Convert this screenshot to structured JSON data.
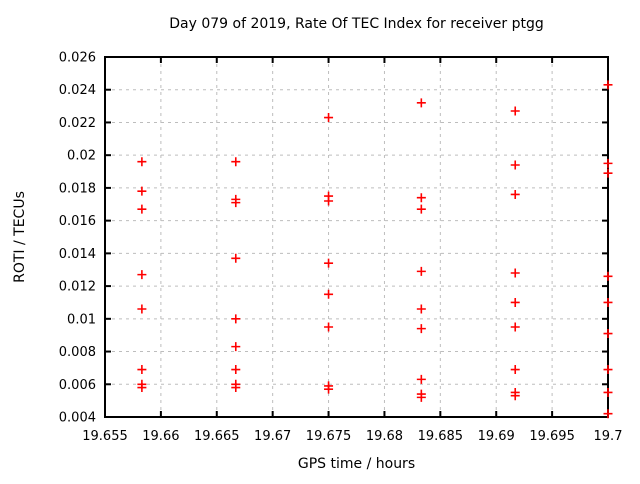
{
  "chart_data": {
    "type": "scatter",
    "title": "Day 079 of 2019, Rate Of TEC Index for receiver ptgg",
    "xlabel": "GPS time / hours",
    "ylabel": "ROTI / TECUs",
    "xlim": [
      19.655,
      19.7
    ],
    "ylim": [
      0.004,
      0.026
    ],
    "x_ticks": [
      19.655,
      19.66,
      19.665,
      19.67,
      19.675,
      19.68,
      19.685,
      19.69,
      19.695,
      19.7
    ],
    "x_tick_labels": [
      "19.655",
      "19.66",
      "19.665",
      "19.67",
      "19.675",
      "19.68",
      "19.685",
      "19.69",
      "19.695",
      "19.7"
    ],
    "y_ticks": [
      0.004,
      0.006,
      0.008,
      0.01,
      0.012,
      0.014,
      0.016,
      0.018,
      0.02,
      0.022,
      0.024,
      0.026
    ],
    "y_tick_labels": [
      "0.004",
      "0.006",
      "0.008",
      "0.01",
      "0.012",
      "0.014",
      "0.016",
      "0.018",
      "0.02",
      "0.022",
      "0.024",
      "0.026"
    ],
    "grid": true,
    "legend": false,
    "grid_color": "#bdbdbd",
    "border_color": "#000000",
    "marker": {
      "shape": "plus",
      "color": "#ff0000",
      "size": 9
    },
    "series": [
      {
        "name": "ROTI",
        "points": [
          [
            19.6583,
            0.0196
          ],
          [
            19.6583,
            0.0178
          ],
          [
            19.6583,
            0.0167
          ],
          [
            19.6583,
            0.0127
          ],
          [
            19.6583,
            0.0106
          ],
          [
            19.6583,
            0.0069
          ],
          [
            19.6583,
            0.006
          ],
          [
            19.6583,
            0.0058
          ],
          [
            19.6667,
            0.0196
          ],
          [
            19.6667,
            0.0173
          ],
          [
            19.6667,
            0.0171
          ],
          [
            19.6667,
            0.0137
          ],
          [
            19.6667,
            0.01
          ],
          [
            19.6667,
            0.0083
          ],
          [
            19.6667,
            0.0069
          ],
          [
            19.6667,
            0.006
          ],
          [
            19.6667,
            0.0058
          ],
          [
            19.675,
            0.0223
          ],
          [
            19.675,
            0.0175
          ],
          [
            19.675,
            0.0172
          ],
          [
            19.675,
            0.0134
          ],
          [
            19.675,
            0.0115
          ],
          [
            19.675,
            0.0095
          ],
          [
            19.675,
            0.0059
          ],
          [
            19.675,
            0.0057
          ],
          [
            19.6833,
            0.0232
          ],
          [
            19.6833,
            0.0174
          ],
          [
            19.6833,
            0.0167
          ],
          [
            19.6833,
            0.0129
          ],
          [
            19.6833,
            0.0106
          ],
          [
            19.6833,
            0.0094
          ],
          [
            19.6833,
            0.0063
          ],
          [
            19.6833,
            0.0054
          ],
          [
            19.6833,
            0.0052
          ],
          [
            19.6917,
            0.0227
          ],
          [
            19.6917,
            0.0194
          ],
          [
            19.6917,
            0.0176
          ],
          [
            19.6917,
            0.0128
          ],
          [
            19.6917,
            0.011
          ],
          [
            19.6917,
            0.0095
          ],
          [
            19.6917,
            0.0069
          ],
          [
            19.6917,
            0.0055
          ],
          [
            19.6917,
            0.0053
          ],
          [
            19.7,
            0.0243
          ],
          [
            19.7,
            0.0195
          ],
          [
            19.7,
            0.0189
          ],
          [
            19.7,
            0.0126
          ],
          [
            19.7,
            0.011
          ],
          [
            19.7,
            0.0091
          ],
          [
            19.7,
            0.0069
          ],
          [
            19.7,
            0.0055
          ],
          [
            19.7,
            0.0042
          ]
        ]
      }
    ]
  }
}
